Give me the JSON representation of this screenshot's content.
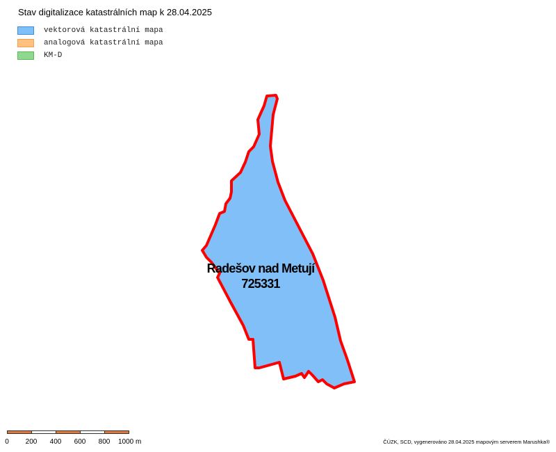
{
  "map": {
    "title": "Stav digitalizace katastrálních map k 28.04.2025",
    "legend": [
      {
        "label": "vektorová katastrální mapa",
        "fill": "#80bff8",
        "border": "#3d8ee0"
      },
      {
        "label": "analogová katastrální mapa",
        "fill": "#ffc080",
        "border": "#f0a050"
      },
      {
        "label": "KM-D",
        "fill": "#90d890",
        "border": "#5cb85c"
      }
    ],
    "parcel": {
      "name": "Radešov nad Metují",
      "code": "725331",
      "fill": "#80bff8",
      "border": "#ff0000"
    },
    "scalebar": {
      "ticks": [
        "0",
        "200",
        "400",
        "600",
        "800",
        "1000 m"
      ],
      "segment_colors": [
        "#e07a3c",
        "#ffffff",
        "#e07a3c",
        "#ffffff",
        "#e07a3c"
      ]
    },
    "credits": "ČÚZK, SCD, vygenerováno 28.04.2025 mapovým serverem Marushka®"
  }
}
